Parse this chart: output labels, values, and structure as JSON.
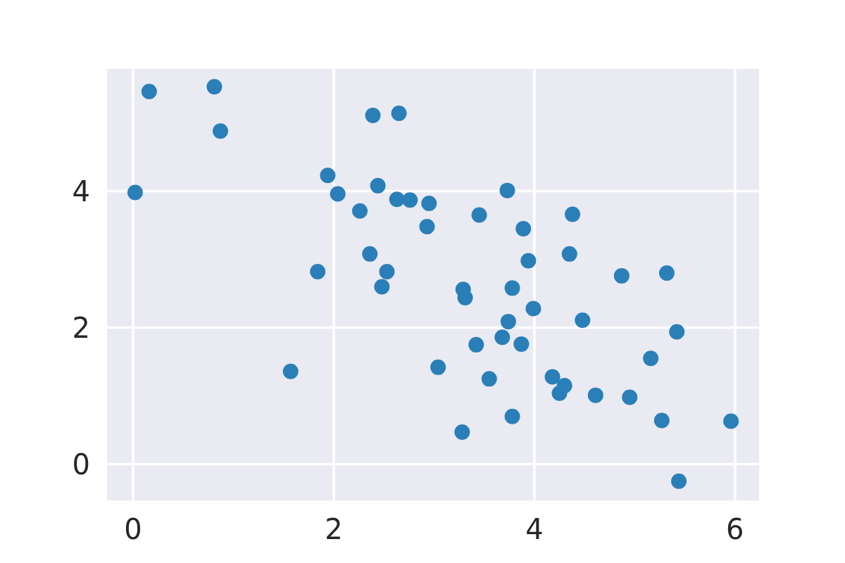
{
  "chart_data": {
    "type": "scatter",
    "color": "#2a7fb8",
    "marker": "circle",
    "grid": true,
    "xlim": [
      -0.26,
      6.24
    ],
    "ylim": [
      -0.53,
      5.79
    ],
    "xticks": [
      0,
      2,
      4,
      6
    ],
    "yticks": [
      0,
      2,
      4
    ],
    "x": [
      0.02,
      0.16,
      0.81,
      0.87,
      1.57,
      1.84,
      1.94,
      2.04,
      2.26,
      2.36,
      2.39,
      2.44,
      2.48,
      2.53,
      2.63,
      2.65,
      2.76,
      2.93,
      2.95,
      3.04,
      3.28,
      3.29,
      3.31,
      3.42,
      3.45,
      3.55,
      3.68,
      3.73,
      3.74,
      3.78,
      3.78,
      3.87,
      3.89,
      3.94,
      3.99,
      4.18,
      4.25,
      4.3,
      4.35,
      4.38,
      4.48,
      4.61,
      4.87,
      4.95,
      5.16,
      5.27,
      5.32,
      5.42,
      5.44,
      5.96
    ],
    "values": [
      3.98,
      5.46,
      5.53,
      4.88,
      1.36,
      2.82,
      4.23,
      3.96,
      3.71,
      3.08,
      5.11,
      4.08,
      2.6,
      2.82,
      3.88,
      5.14,
      3.87,
      3.48,
      3.82,
      1.42,
      0.47,
      2.56,
      2.44,
      1.75,
      3.65,
      1.25,
      1.86,
      4.01,
      2.09,
      2.58,
      0.7,
      1.76,
      3.45,
      2.98,
      2.28,
      1.28,
      1.04,
      1.15,
      3.08,
      3.66,
      2.11,
      1.01,
      2.76,
      0.98,
      1.55,
      0.64,
      2.8,
      1.94,
      -0.25,
      0.63
    ]
  }
}
